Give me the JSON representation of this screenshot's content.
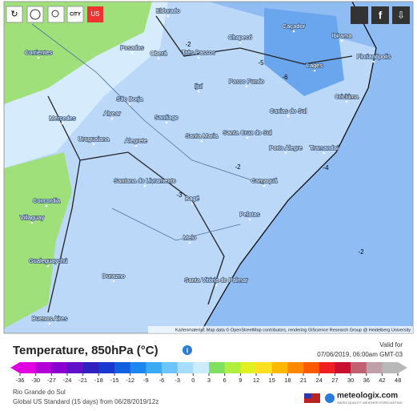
{
  "toolbar": {
    "city": "CITY",
    "us": "US"
  },
  "map": {
    "cities": [
      "Eldorado",
      "Posadas",
      "Oberá",
      "Três Passos",
      "Chapecó",
      "Caçador",
      "Ibirama",
      "Lages",
      "Florianópolis",
      "Passo Fundo",
      "Ijuí",
      "Criciúma",
      "Corrientes",
      "São Borja",
      "Alvear",
      "Mercedes",
      "Santiago",
      "Caxias do Sul",
      "Uruguaiana",
      "Alegrete",
      "Santa Maria",
      "Santa Cruz do Sul",
      "Porto Alegre",
      "Tramandaí",
      "Santana do Livramento",
      "Camaquã",
      "Bagé",
      "Concordia",
      "Pelotas",
      "Villaguay",
      "Melo",
      "Gualeguaychú",
      "Durazno",
      "Santa Vitória do Palmar",
      "Buenos Aires"
    ],
    "contours": [
      "-2",
      "-5",
      "-6",
      "-4",
      "-2",
      "-3",
      "-2"
    ],
    "attribution": "Kartenmaterial: Map data © OpenStreetMap contributors, rendering GIScience Research Group @ Heidelberg University"
  },
  "header": {
    "title": "Temperature, 850hPa (°C)",
    "valid_label": "Valid for",
    "valid_time": "07/06/2019, 06:00am GMT-03"
  },
  "legend": {
    "ticks": [
      -36,
      -30,
      -27,
      -24,
      -21,
      -18,
      -15,
      -12,
      -9,
      -6,
      -3,
      0,
      3,
      6,
      9,
      12,
      15,
      18,
      21,
      24,
      27,
      30,
      36,
      42,
      48
    ],
    "colors": [
      "#e000e0",
      "#b400d8",
      "#8a00d0",
      "#6010c8",
      "#3020c0",
      "#1838d0",
      "#1060e0",
      "#1a88ee",
      "#3aaaf4",
      "#6cc4f8",
      "#a8dcfb",
      "#ccecfd",
      "#80e060",
      "#b0ee40",
      "#e0f020",
      "#ffe020",
      "#ffb800",
      "#ff8800",
      "#ff5a00",
      "#f02020",
      "#c81030",
      "#c06070",
      "#c0a0a8",
      "#b8b8b8"
    ]
  },
  "footer": {
    "region": "Rio Grande do Sul",
    "model": "Global US Standard (15 days) from 06/28/2019/12z",
    "brand": "meteologix.com",
    "tagline": "SWISS QUALITY WEATHER FORECASTING"
  }
}
